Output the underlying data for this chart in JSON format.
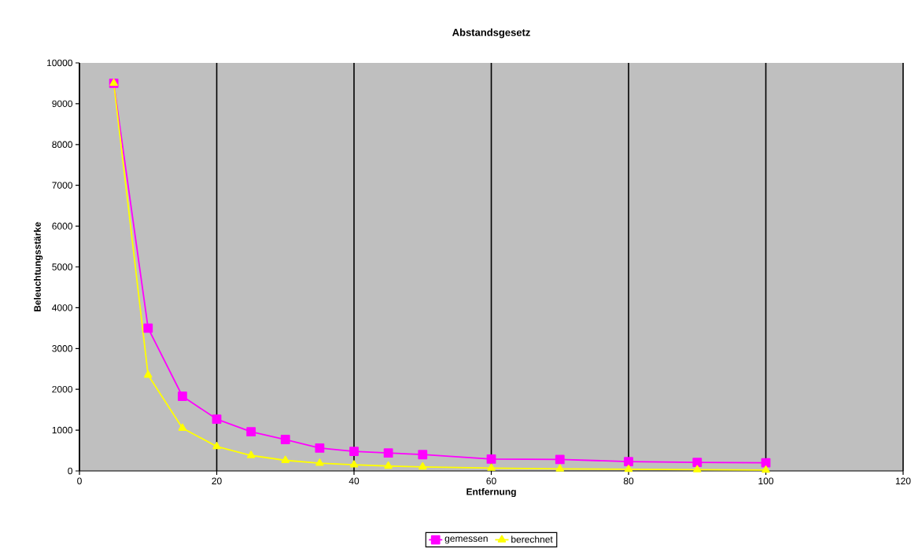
{
  "chart_data": {
    "type": "line",
    "title": "Abstandsgesetz",
    "xlabel": "Entfernung",
    "ylabel": "Beleuchtungsstärke",
    "xlim": [
      0,
      120
    ],
    "xticks": [
      0,
      20,
      40,
      60,
      80,
      100,
      120
    ],
    "ylim": [
      0,
      10000
    ],
    "yticks": [
      0,
      1000,
      2000,
      3000,
      4000,
      5000,
      6000,
      7000,
      8000,
      9000,
      10000
    ],
    "grid": "x",
    "legend": "bottom",
    "x": [
      5,
      10,
      15,
      20,
      25,
      30,
      35,
      40,
      45,
      50,
      60,
      70,
      80,
      90,
      100
    ],
    "series": [
      {
        "name": "gemessen",
        "color": "#ff00ff",
        "marker": "square",
        "values": [
          9500,
          3500,
          1830,
          1270,
          960,
          770,
          560,
          480,
          440,
          400,
          290,
          280,
          230,
          210,
          200
        ]
      },
      {
        "name": "berechnet",
        "color": "#ffff00",
        "marker": "triangle",
        "values": [
          9500,
          2350,
          1050,
          600,
          380,
          260,
          190,
          150,
          120,
          100,
          70,
          50,
          40,
          30,
          20
        ]
      }
    ]
  }
}
